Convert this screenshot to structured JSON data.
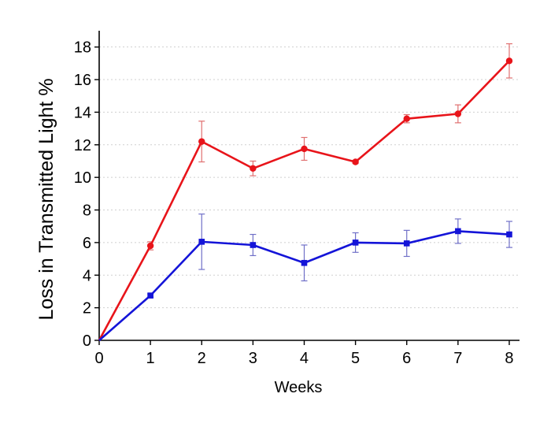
{
  "chart_data": {
    "type": "line",
    "xlabel": "Weeks",
    "ylabel": "Loss in Transmitted Light %",
    "xlim": [
      0,
      8.2
    ],
    "ylim": [
      0,
      19
    ],
    "xticks": [
      0,
      1,
      2,
      3,
      4,
      5,
      6,
      7,
      8
    ],
    "yticks": [
      0,
      2,
      4,
      6,
      8,
      10,
      12,
      14,
      16,
      18
    ],
    "grid": "horizontal dotted",
    "legend": "none",
    "x": [
      0,
      1,
      2,
      3,
      4,
      5,
      6,
      7,
      8
    ],
    "series": [
      {
        "color": "#e8141a",
        "error_color": "#e07070",
        "marker": "circle",
        "values": [
          0,
          5.8,
          12.2,
          10.55,
          11.75,
          10.95,
          13.6,
          13.9,
          17.15
        ],
        "errors": [
          0,
          0.25,
          1.25,
          0.45,
          0.7,
          0.1,
          0.25,
          0.55,
          1.05
        ]
      },
      {
        "color": "#1414d8",
        "error_color": "#7070c8",
        "marker": "square",
        "values": [
          0,
          2.75,
          6.05,
          5.85,
          4.75,
          6.0,
          5.95,
          6.7,
          6.5
        ],
        "errors": [
          0,
          0.1,
          1.7,
          0.65,
          1.1,
          0.6,
          0.8,
          0.75,
          0.8
        ]
      }
    ]
  }
}
